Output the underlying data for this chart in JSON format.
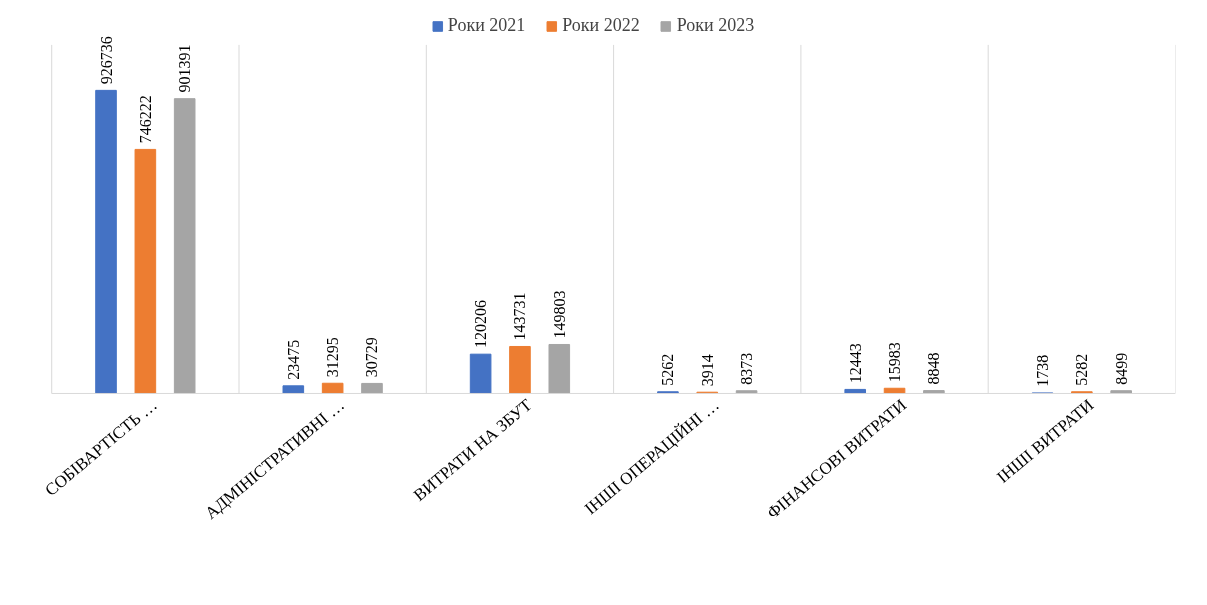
{
  "chart_data": {
    "type": "bar",
    "categories": [
      "СОБІВАРТІСТЬ …",
      "АДМІНІСТРАТИВНІ …",
      "ВИТРАТИ НА ЗБУТ",
      "ІНШІ ОПЕРАЦІЙНІ …",
      "ФІНАНСОВІ ВИТРАТИ",
      "ІНШІ ВИТРАТИ"
    ],
    "series": [
      {
        "name": "Роки 2021",
        "color": "#4472c4",
        "values": [
          926736,
          23475,
          120206,
          5262,
          12443,
          1738
        ]
      },
      {
        "name": "Роки 2022",
        "color": "#ed7d31",
        "values": [
          746222,
          31295,
          143731,
          3914,
          15983,
          5282
        ]
      },
      {
        "name": "Роки 2023",
        "color": "#a5a5a5",
        "values": [
          901391,
          30729,
          149803,
          8373,
          8848,
          8499
        ]
      }
    ],
    "data_labels": true,
    "legend": "top",
    "grid": "x",
    "tick_labels": "x"
  }
}
